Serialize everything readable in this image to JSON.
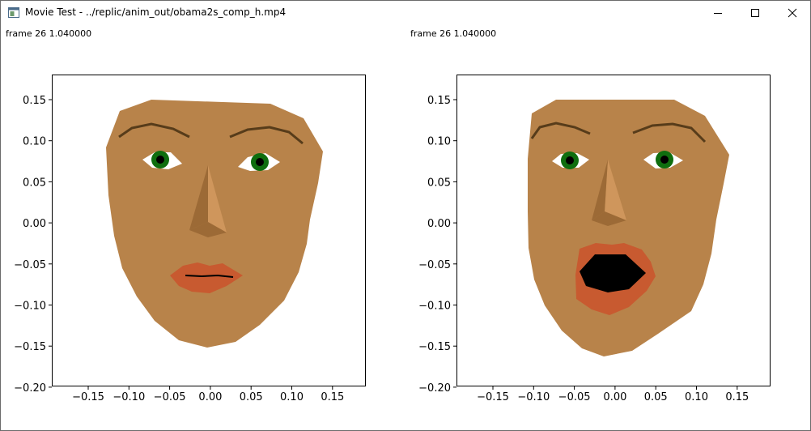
{
  "window": {
    "title": "Movie Test - ../replic/anim_out/obama2s_comp_h.mp4",
    "controls": [
      "minimize",
      "maximize",
      "close"
    ]
  },
  "panels": [
    {
      "frame_label": "frame 26 1.040000",
      "mouth": "closed",
      "x_ticks": [
        "−0.15",
        "−0.10",
        "−0.05",
        "0.00",
        "0.05",
        "0.10",
        "0.15"
      ],
      "y_ticks": [
        "0.15",
        "0.10",
        "0.05",
        "0.00",
        "−0.05",
        "−0.10",
        "−0.15",
        "−0.20"
      ]
    },
    {
      "frame_label": "frame 26 1.040000",
      "mouth": "open",
      "x_ticks": [
        "−0.15",
        "−0.10",
        "−0.05",
        "0.00",
        "0.05",
        "0.10",
        "0.15"
      ],
      "y_ticks": [
        "0.15",
        "0.10",
        "0.05",
        "0.00",
        "−0.05",
        "−0.10",
        "−0.15",
        "−0.20"
      ]
    }
  ],
  "axes": {
    "xlim": [
      -0.19,
      0.19
    ],
    "ylim": [
      -0.2,
      0.18
    ]
  },
  "colors": {
    "skin": "#b8834a",
    "nose_light": "#cf965c",
    "nose_dark": "#9c6a36",
    "lip": "#c85a30",
    "brow": "#573c1a",
    "iris": "#0f6e0f",
    "mouth_inside": "#000000"
  },
  "icons": {
    "app": "app-window-icon",
    "minimize": "minimize-icon",
    "maximize": "maximize-icon",
    "close": "close-icon"
  }
}
